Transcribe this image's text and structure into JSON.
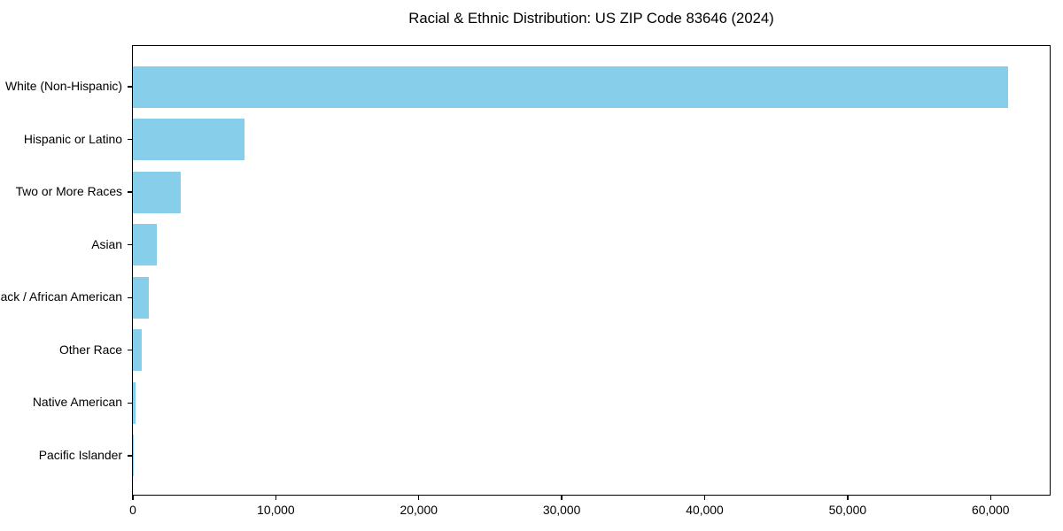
{
  "figure": {
    "background": "#ffffff"
  },
  "chart_data": {
    "type": "bar",
    "orientation": "horizontal",
    "title": "Racial & Ethnic Distribution: US ZIP Code 83646 (2024)",
    "categories": [
      "White (Non-Hispanic)",
      "Hispanic or Latino",
      "Two or More Races",
      "Asian",
      "Black / African American",
      "Other Race",
      "Native American",
      "Pacific Islander"
    ],
    "values": [
      61200,
      7800,
      3350,
      1670,
      1120,
      620,
      210,
      40
    ],
    "xlabel": "",
    "ylabel": "",
    "xlim": [
      0,
      64260
    ],
    "xticks": [
      0,
      10000,
      20000,
      30000,
      40000,
      50000,
      60000
    ],
    "xtick_labels": [
      "0",
      "10,000",
      "20,000",
      "30,000",
      "40,000",
      "50,000",
      "60,000"
    ],
    "bar_color": "#87CEEB",
    "axis_color": "#000000",
    "text_color": "#000000",
    "grid": false,
    "legend": null
  }
}
